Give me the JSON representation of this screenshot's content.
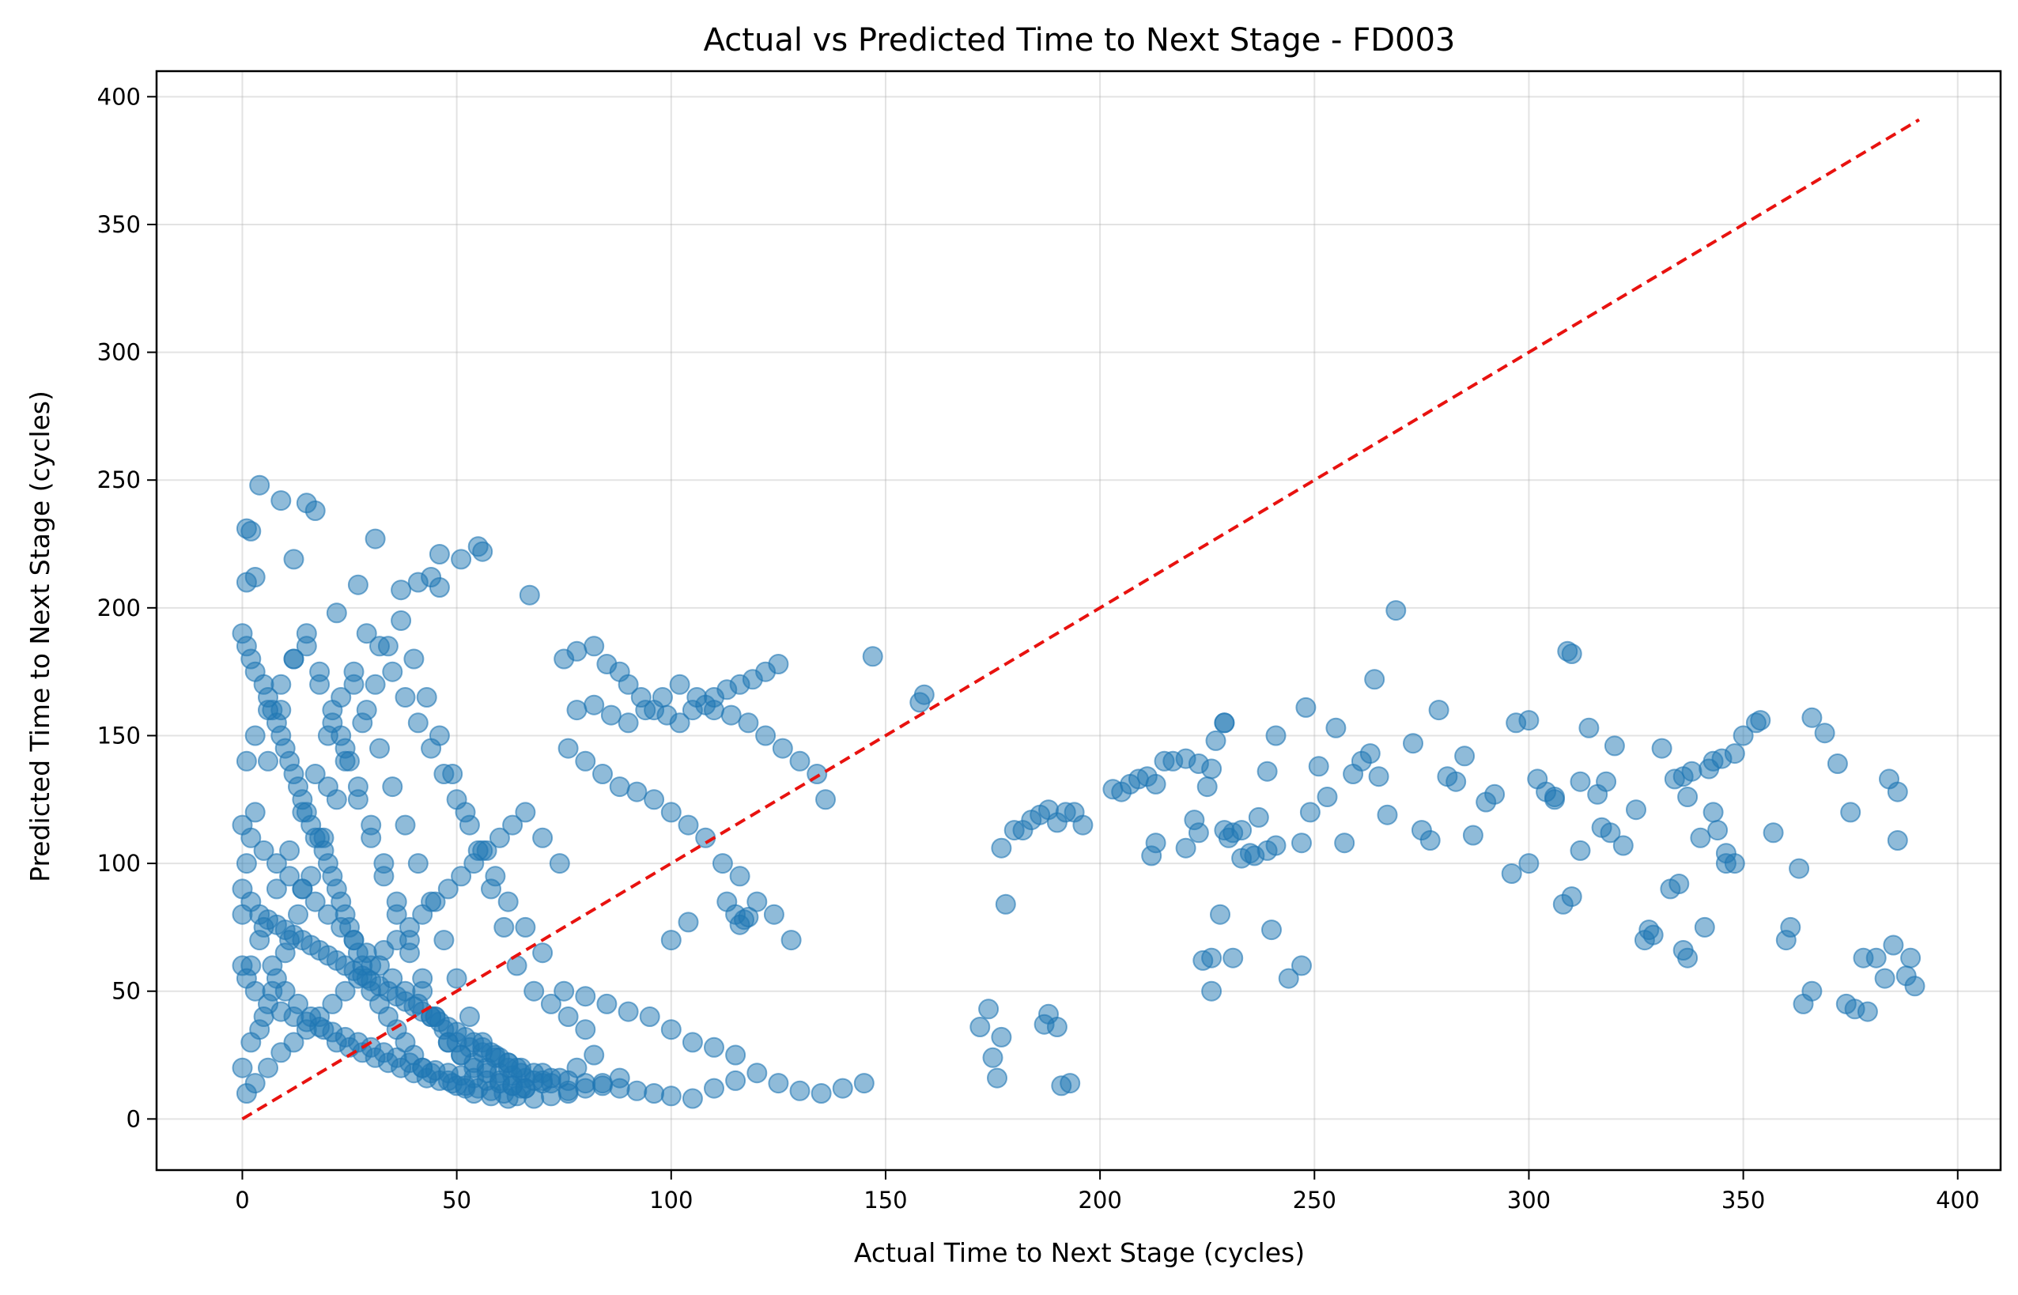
{
  "chart_data": {
    "type": "scatter",
    "title": "Actual vs Predicted Time to Next Stage - FD003",
    "xlabel": "Actual Time to Next Stage (cycles)",
    "ylabel": "Predicted Time to Next Stage (cycles)",
    "xlim": [
      -20,
      410
    ],
    "ylim": [
      -20,
      410
    ],
    "xticks": [
      0,
      50,
      100,
      150,
      200,
      250,
      300,
      350,
      400
    ],
    "yticks": [
      0,
      50,
      100,
      150,
      200,
      250,
      300,
      350,
      400
    ],
    "grid": true,
    "colors": {
      "points": "#1f77b4",
      "reference_line": "#e8120f"
    },
    "reference_line": {
      "style": "dashed",
      "x": [
        0,
        391
      ],
      "y": [
        0,
        391
      ]
    },
    "points": {
      "x": [
        4,
        1,
        2,
        3,
        1,
        9,
        15,
        17,
        31,
        46,
        55,
        56,
        51,
        44,
        41,
        12,
        27,
        22,
        37,
        46,
        67,
        147,
        158,
        159,
        229,
        248,
        264,
        269,
        310,
        353,
        0,
        1,
        2,
        3,
        5,
        6,
        7,
        8,
        9,
        10,
        11,
        12,
        13,
        14,
        15,
        16,
        18,
        19,
        20,
        21,
        22,
        23,
        24,
        25,
        26,
        27,
        28,
        29,
        30,
        32,
        34,
        36,
        38,
        40,
        42,
        44,
        48,
        50,
        52,
        54,
        58,
        62,
        65,
        68,
        70,
        72,
        76,
        1,
        3,
        6,
        9,
        12,
        15,
        18,
        21,
        24,
        27,
        30,
        33,
        36,
        39,
        42,
        45,
        48,
        51,
        54,
        57,
        60,
        63,
        66,
        70,
        74,
        2,
        5,
        8,
        11,
        14,
        17,
        20,
        23,
        26,
        29,
        32,
        35,
        38,
        41,
        44,
        47,
        50,
        53,
        56,
        59,
        62,
        66,
        70,
        0,
        4,
        7,
        10,
        13,
        16,
        19,
        22,
        25,
        28,
        31,
        34,
        37,
        40,
        43,
        46,
        49,
        52,
        55,
        58,
        61,
        64,
        68,
        72,
        76,
        80,
        1,
        3,
        6,
        9,
        12,
        15,
        18,
        21,
        24,
        27,
        30,
        33,
        36,
        39,
        42,
        45,
        48,
        51,
        54,
        57,
        60,
        63,
        66,
        70,
        74,
        78,
        82,
        2,
        5,
        8,
        11,
        14,
        17,
        20,
        23,
        26,
        29,
        32,
        35,
        38,
        41,
        44,
        47,
        50,
        53,
        56,
        59,
        62,
        65,
        0,
        4,
        7,
        10,
        13,
        16,
        19,
        22,
        25,
        28,
        31,
        34,
        37,
        40,
        43,
        46,
        49,
        52,
        55,
        58,
        61,
        64,
        68,
        72,
        76,
        80,
        84,
        88,
        1,
        3,
        6,
        9,
        12,
        15,
        18,
        21,
        24,
        27,
        30,
        33,
        36,
        39,
        42,
        45,
        48,
        51,
        54,
        57,
        60,
        63,
        66,
        70,
        0,
        2,
        5,
        8,
        11,
        14,
        17,
        20,
        23,
        26,
        29,
        32,
        35,
        38,
        41,
        44,
        47,
        50,
        53,
        56,
        59,
        62,
        65,
        68,
        72,
        76,
        80,
        84,
        88,
        92,
        96,
        100,
        105,
        110,
        115,
        120,
        125,
        130,
        135,
        140,
        145,
        0,
        1,
        3,
        6,
        9,
        12,
        15,
        18,
        21,
        24,
        27,
        30,
        33,
        36,
        39,
        42,
        45,
        48,
        51,
        54,
        57,
        60,
        63,
        66,
        0,
        2,
        4,
        6,
        8,
        10,
        12,
        14,
        16,
        18,
        20,
        22,
        24,
        26,
        28,
        30,
        32,
        34,
        36,
        38,
        40,
        42,
        44,
        46,
        48,
        50,
        52,
        54,
        56,
        58,
        60,
        62,
        64,
        75,
        78,
        82,
        85,
        88,
        90,
        93,
        96,
        99,
        102,
        105,
        108,
        110,
        113,
        116,
        119,
        122,
        125,
        78,
        82,
        86,
        90,
        94,
        98,
        102,
        106,
        110,
        114,
        118,
        122,
        126,
        130,
        134,
        136,
        76,
        80,
        84,
        88,
        92,
        96,
        100,
        104,
        108,
        112,
        116,
        120,
        124,
        128,
        75,
        80,
        85,
        90,
        95,
        100,
        105,
        110,
        115,
        113,
        115,
        116,
        117,
        118,
        100,
        104,
        172,
        175,
        176,
        177,
        188,
        190,
        191,
        193,
        174,
        187,
        177,
        178,
        180,
        182,
        184,
        186,
        188,
        190,
        192,
        194,
        196,
        203,
        205,
        207,
        209,
        211,
        213,
        215,
        217,
        220,
        223,
        226,
        212,
        213,
        220,
        222,
        225,
        227,
        229,
        230,
        233,
        236,
        239,
        241,
        224,
        226,
        228,
        231,
        233,
        235,
        237,
        239,
        241,
        223,
        226,
        229,
        231,
        240,
        244,
        247,
        247,
        249,
        251,
        253,
        255,
        257,
        259,
        261,
        263,
        265,
        267,
        273,
        275,
        277,
        279,
        281,
        283,
        285,
        287,
        290,
        292,
        297,
        300,
        302,
        304,
        306,
        308,
        310,
        312,
        314,
        316,
        318,
        320,
        322,
        325,
        328,
        331,
        334,
        336,
        338,
        340,
        342,
        344,
        346,
        348,
        296,
        300,
        306,
        309,
        312,
        317,
        319,
        327,
        329,
        333,
        335,
        337,
        341,
        343,
        345,
        350,
        354,
        357,
        360,
        363,
        366,
        369,
        372,
        375,
        378,
        381,
        384,
        386,
        388,
        390,
        336,
        337,
        343,
        346,
        348,
        361,
        364,
        366,
        374,
        376,
        379,
        383,
        385,
        386,
        389
      ],
      "y": [
        248,
        231,
        230,
        212,
        210,
        242,
        241,
        238,
        227,
        221,
        224,
        222,
        219,
        212,
        210,
        219,
        209,
        198,
        207,
        208,
        205,
        181,
        163,
        166,
        155,
        161,
        172,
        199,
        182,
        155,
        190,
        185,
        180,
        175,
        170,
        165,
        160,
        155,
        150,
        145,
        140,
        135,
        130,
        125,
        120,
        115,
        110,
        105,
        100,
        95,
        90,
        85,
        80,
        75,
        70,
        65,
        60,
        55,
        50,
        45,
        40,
        35,
        30,
        25,
        20,
        18,
        15,
        13,
        12,
        10,
        9,
        8,
        12,
        15,
        18,
        14,
        11,
        10,
        14,
        20,
        26,
        30,
        35,
        40,
        45,
        50,
        55,
        60,
        66,
        70,
        75,
        80,
        85,
        90,
        95,
        100,
        105,
        110,
        115,
        120,
        110,
        100,
        30,
        40,
        55,
        70,
        90,
        110,
        130,
        150,
        170,
        190,
        185,
        175,
        165,
        155,
        145,
        135,
        125,
        115,
        105,
        95,
        85,
        75,
        65,
        20,
        35,
        50,
        65,
        80,
        95,
        110,
        125,
        140,
        155,
        170,
        185,
        195,
        180,
        165,
        150,
        135,
        120,
        105,
        90,
        75,
        60,
        50,
        45,
        40,
        35,
        100,
        120,
        140,
        160,
        180,
        190,
        175,
        160,
        145,
        130,
        115,
        100,
        85,
        70,
        55,
        40,
        30,
        25,
        20,
        18,
        15,
        13,
        12,
        14,
        16,
        20,
        25,
        60,
        75,
        90,
        105,
        120,
        135,
        150,
        165,
        175,
        160,
        145,
        130,
        115,
        100,
        85,
        70,
        55,
        40,
        30,
        25,
        20,
        18,
        80,
        70,
        60,
        50,
        45,
        40,
        35,
        30,
        28,
        26,
        24,
        22,
        20,
        18,
        16,
        15,
        14,
        13,
        12,
        11,
        10,
        9,
        8,
        9,
        10,
        12,
        14,
        16,
        140,
        150,
        160,
        170,
        180,
        185,
        170,
        155,
        140,
        125,
        110,
        95,
        80,
        65,
        50,
        40,
        30,
        25,
        22,
        20,
        18,
        17,
        16,
        15,
        115,
        110,
        105,
        100,
        95,
        90,
        85,
        80,
        75,
        70,
        65,
        60,
        55,
        50,
        45,
        40,
        35,
        30,
        28,
        26,
        24,
        22,
        20,
        18,
        16,
        15,
        14,
        13,
        12,
        11,
        10,
        9,
        8,
        12,
        15,
        18,
        14,
        11,
        10,
        12,
        14,
        60,
        55,
        50,
        45,
        42,
        40,
        38,
        36,
        34,
        32,
        30,
        28,
        26,
        24,
        22,
        20,
        19,
        18,
        17,
        16,
        15,
        14,
        13,
        12,
        90,
        85,
        80,
        78,
        76,
        74,
        72,
        70,
        68,
        66,
        64,
        62,
        60,
        58,
        56,
        54,
        52,
        50,
        48,
        46,
        44,
        42,
        40,
        38,
        36,
        34,
        32,
        30,
        28,
        26,
        24,
        22,
        20,
        180,
        183,
        185,
        178,
        175,
        170,
        165,
        160,
        158,
        155,
        160,
        162,
        165,
        168,
        170,
        172,
        175,
        178,
        160,
        162,
        158,
        155,
        160,
        165,
        170,
        165,
        160,
        158,
        155,
        150,
        145,
        140,
        135,
        125,
        145,
        140,
        135,
        130,
        128,
        125,
        120,
        115,
        110,
        100,
        95,
        85,
        80,
        70,
        50,
        48,
        45,
        42,
        40,
        35,
        30,
        28,
        25,
        85,
        80,
        76,
        78,
        79,
        70,
        77,
        36,
        24,
        16,
        32,
        41,
        36,
        13,
        14,
        43,
        37,
        106,
        84,
        113,
        113,
        117,
        119,
        121,
        116,
        120,
        120,
        115,
        129,
        128,
        131,
        133,
        134,
        131,
        140,
        140,
        141,
        139,
        137,
        103,
        108,
        106,
        117,
        130,
        148,
        155,
        110,
        113,
        103,
        105,
        107,
        62,
        63,
        80,
        63,
        102,
        104,
        118,
        136,
        150,
        112,
        50,
        113,
        112,
        74,
        55,
        60,
        108,
        120,
        138,
        126,
        153,
        108,
        135,
        140,
        143,
        134,
        119,
        147,
        113,
        109,
        160,
        134,
        132,
        142,
        111,
        124,
        127,
        155,
        100,
        133,
        128,
        126,
        84,
        87,
        105,
        153,
        127,
        132,
        146,
        107,
        121,
        74,
        145,
        133,
        134,
        136,
        110,
        137,
        113,
        100,
        143,
        96,
        156,
        125,
        183,
        132,
        114,
        112,
        70,
        72,
        90,
        92,
        126,
        75,
        120,
        141,
        150,
        156,
        112,
        70,
        98,
        157,
        151,
        139,
        120,
        63,
        63,
        133,
        128,
        56,
        52,
        66,
        63,
        140,
        104,
        100,
        75,
        45,
        50,
        45,
        43,
        42,
        55,
        68,
        109,
        63
      ]
    }
  }
}
